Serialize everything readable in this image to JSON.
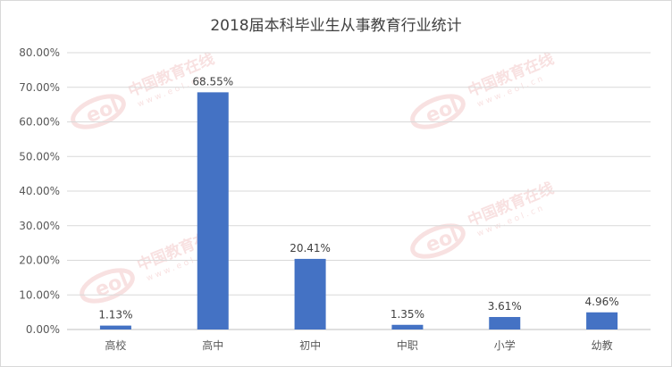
{
  "chart_data": {
    "type": "bar",
    "title": "2018届本科毕业生从事教育行业统计",
    "categories": [
      "高校",
      "高中",
      "初中",
      "中职",
      "小学",
      "幼教"
    ],
    "values": [
      1.13,
      68.55,
      20.41,
      1.35,
      3.61,
      4.96
    ],
    "data_labels": [
      "1.13%",
      "68.55%",
      "20.41%",
      "1.35%",
      "3.61%",
      "4.96%"
    ],
    "ylim": [
      0,
      80
    ],
    "yticks": [
      0,
      10,
      20,
      30,
      40,
      50,
      60,
      70,
      80
    ],
    "ytick_labels": [
      "0.00%",
      "10.00%",
      "20.00%",
      "30.00%",
      "40.00%",
      "50.00%",
      "60.00%",
      "70.00%",
      "80.00%"
    ],
    "xlabel": "",
    "ylabel": "",
    "grid": true,
    "legend": "none",
    "bar_color": "#4472c4"
  },
  "watermark": {
    "logo_text": "eol",
    "site_name": "中国教育在线",
    "site_url": "www.eol.cn",
    "color": "#f3c9c9"
  }
}
